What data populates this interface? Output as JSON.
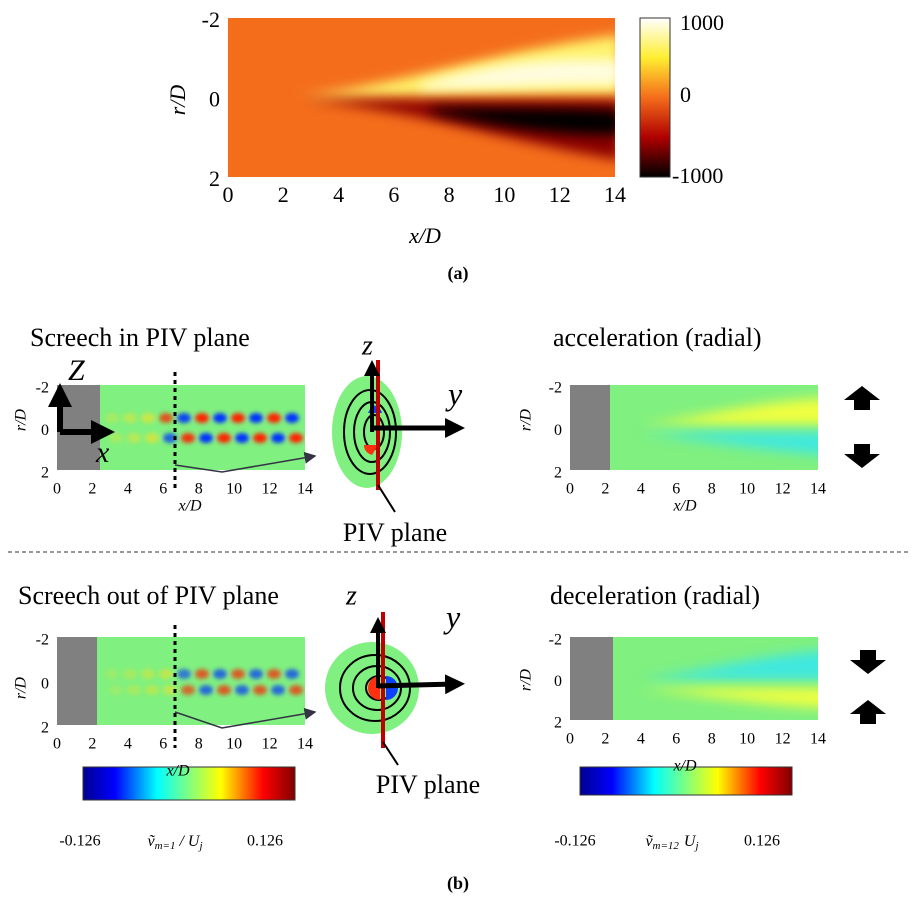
{
  "panel_a": {
    "ylabel": "r/D",
    "xlabel": "x/D",
    "yticks": [
      "-2",
      "0",
      "2"
    ],
    "xticks": [
      "0",
      "2",
      "4",
      "6",
      "8",
      "10",
      "12",
      "14"
    ],
    "colorbar_ticks": [
      "1000",
      "0",
      "-1000"
    ],
    "caption": "(a)"
  },
  "panel_b": {
    "top": {
      "left_title": "Screech in PIV plane",
      "right_title": "acceleration (radial)",
      "left_plot": {
        "ylabel": "r/D",
        "xlabel": "x/D",
        "yticks": [
          "-2",
          "0",
          "2"
        ],
        "xticks": [
          "0",
          "2",
          "4",
          "6",
          "8",
          "10",
          "12",
          "14"
        ],
        "axis_z": "Z",
        "axis_x": "x"
      },
      "schematic": {
        "z": "z",
        "y": "y",
        "plane_label": "PIV plane"
      },
      "right_plot": {
        "ylabel": "r/D",
        "xlabel": "x/D",
        "yticks": [
          "-2",
          "0",
          "2"
        ],
        "xticks": [
          "0",
          "2",
          "4",
          "6",
          "8",
          "10",
          "12",
          "14"
        ]
      }
    },
    "bottom": {
      "left_title": "Screech out of PIV plane",
      "right_title": "deceleration  (radial)",
      "left_plot": {
        "ylabel": "r/D",
        "xlabel": "x/D",
        "yticks": [
          "-2",
          "0",
          "2"
        ],
        "xticks": [
          "0",
          "2",
          "4",
          "6",
          "8",
          "10",
          "12",
          "14"
        ]
      },
      "schematic": {
        "z": "z",
        "y": "y",
        "plane_label": "PIV plane"
      },
      "right_plot": {
        "ylabel": "r/D",
        "xlabel": "x/D",
        "yticks": [
          "-2",
          "0",
          "2"
        ],
        "xticks": [
          "0",
          "2",
          "4",
          "6",
          "8",
          "10",
          "12",
          "14"
        ]
      }
    },
    "colorbars": [
      {
        "min": "-0.126",
        "max": "0.126",
        "symbol": "ṽ",
        "subscript": "m=1",
        "denominator": "/ U",
        "denominator_subscript": "j"
      },
      {
        "min": "-0.126",
        "max": "0.126",
        "symbol": "ṽ",
        "subscript": "m=12",
        "denominator": "U",
        "denominator_subscript": "j"
      }
    ],
    "caption": "(b)"
  }
}
